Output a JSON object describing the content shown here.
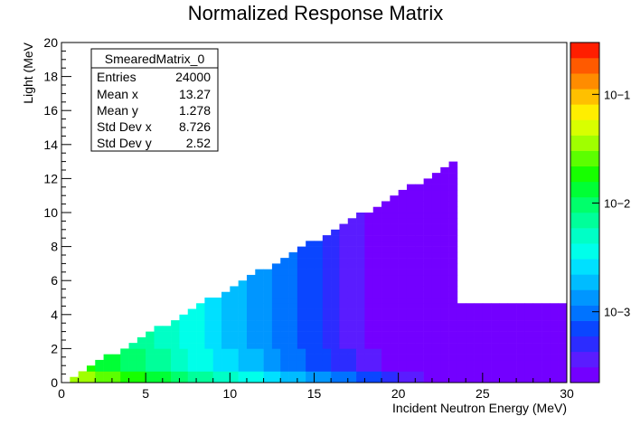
{
  "chart_data": {
    "type": "heatmap",
    "title": "Normalized Response Matrix",
    "xlabel": "Incident Neutron Energy (MeV)",
    "ylabel": "Light (MeV",
    "xlim": [
      0,
      30
    ],
    "ylim": [
      0,
      20
    ],
    "x_ticks": [
      "0",
      "5",
      "10",
      "15",
      "20",
      "25",
      "30"
    ],
    "y_ticks": [
      "0",
      "2",
      "4",
      "6",
      "8",
      "10",
      "12",
      "14",
      "16",
      "18",
      "20"
    ],
    "bins": {
      "nx": 60,
      "ny": 60
    },
    "z_scale": "log",
    "z_ticks": [
      "10−1",
      "10−2",
      "10−3"
    ],
    "z_tick_values": [
      0.1,
      0.01,
      0.001
    ],
    "palette": [
      "#7300ff",
      "#5a1cff",
      "#2c2cff",
      "#0a46ff",
      "#0073ff",
      "#0096ff",
      "#00bcff",
      "#00e0ff",
      "#00ffea",
      "#00ffc6",
      "#00ff9a",
      "#00ff6b",
      "#00ff35",
      "#17ff00",
      "#5cff00",
      "#a0ff00",
      "#d8ff00",
      "#ffee00",
      "#ffc000",
      "#ff8c00",
      "#ff5a00",
      "#ff1e00"
    ],
    "stats_box": {
      "name": "SmearedMatrix_0",
      "rows": [
        {
          "label": "Entries",
          "value": "24000"
        },
        {
          "label": "Mean x",
          "value": "13.27"
        },
        {
          "label": "Mean y",
          "value": "1.278"
        },
        {
          "label": "Std Dev x",
          "value": "8.726"
        },
        {
          "label": "Std Dev y",
          "value": "2.52"
        }
      ]
    },
    "grid": false,
    "legend": "none"
  }
}
